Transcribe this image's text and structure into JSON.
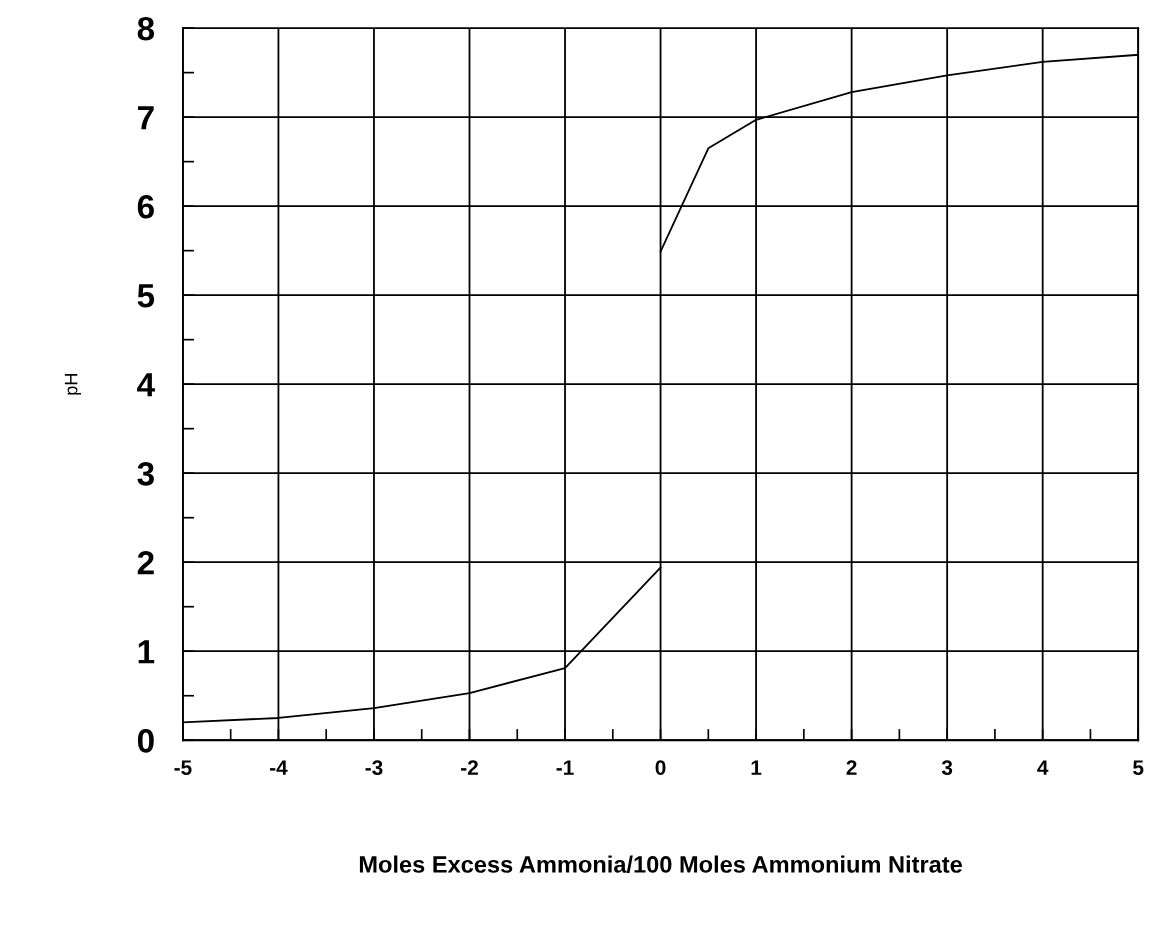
{
  "chart_data": {
    "type": "line",
    "xlabel": "Moles Excess Ammonia/100 Moles Ammonium Nitrate",
    "ylabel": "pH",
    "xlim": [
      -5,
      5
    ],
    "xticks": [
      -5,
      -4,
      -3,
      -2,
      -1,
      0,
      1,
      2,
      3,
      4,
      5
    ],
    "ylim": [
      0,
      8
    ],
    "yticks": [
      0,
      1,
      2,
      3,
      4,
      5,
      6,
      7,
      8
    ],
    "grid": true,
    "marker": "none",
    "line_style": "solid",
    "series": [
      {
        "color": "#000000",
        "x": [
          -5,
          -4,
          -3,
          -2,
          -1,
          0
        ],
        "values": [
          0.2,
          0.25,
          0.36,
          0.53,
          0.81,
          1.94
        ]
      },
      {
        "color": "#000000",
        "x": [
          0,
          0.5,
          1,
          2,
          3,
          4,
          5
        ],
        "values": [
          5.49,
          6.65,
          6.97,
          7.28,
          7.47,
          7.62,
          7.7
        ]
      }
    ]
  }
}
